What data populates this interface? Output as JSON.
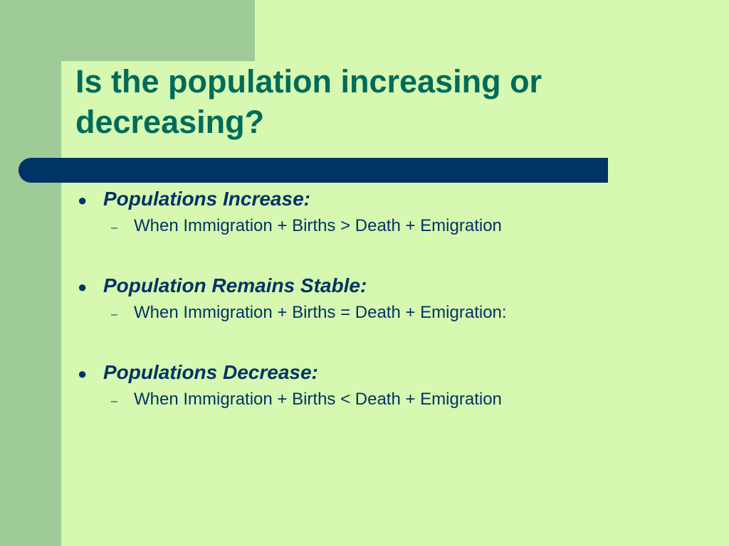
{
  "slide": {
    "title": "Is the population increasing or decreasing?",
    "bullets": [
      {
        "heading": "Populations Increase:",
        "detail": "When Immigration + Births > Death + Emigration"
      },
      {
        "heading": "Population Remains Stable:",
        "detail": "When Immigration + Births = Death + Emigration:"
      },
      {
        "heading": "Populations Decrease:",
        "detail": "When Immigration + Births < Death + Emigration"
      }
    ],
    "bullet_glyph": "●",
    "sub_glyph": "–"
  },
  "colors": {
    "background": "#d6f8b0",
    "accent_green": "#9ecb97",
    "title_text": "#006b5a",
    "bar_and_body_text": "#003366"
  }
}
